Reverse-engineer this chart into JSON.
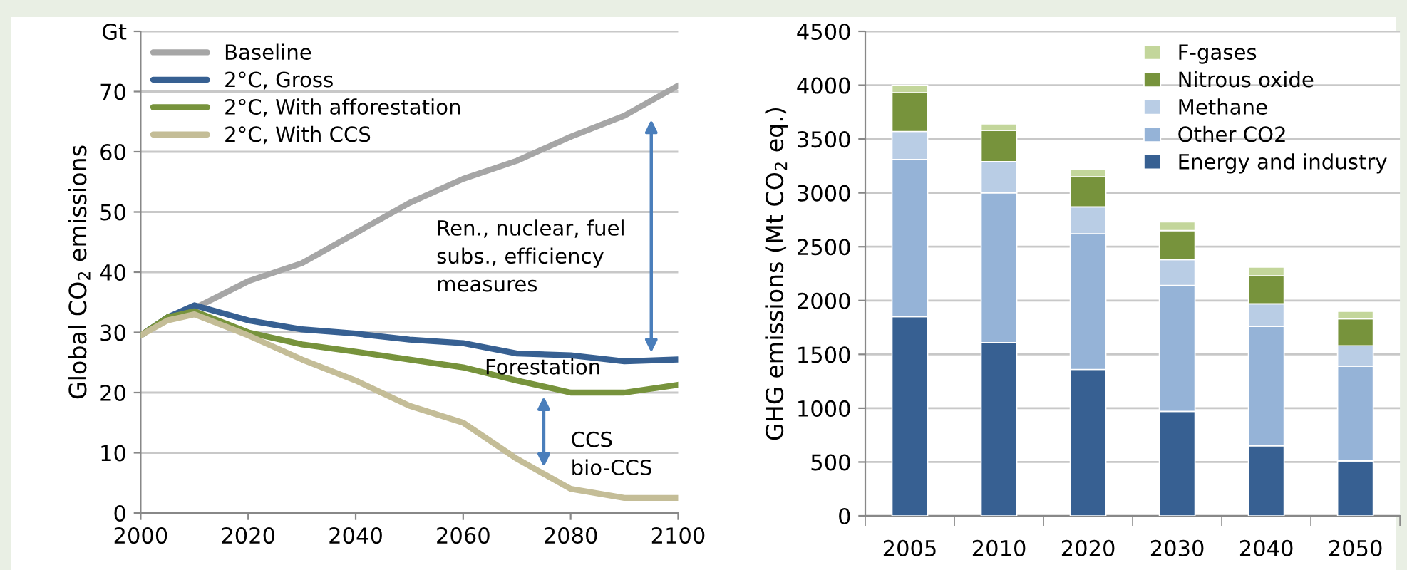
{
  "chart_data": [
    {
      "type": "line",
      "ylabel": "Global CO$_{2}$ emissions",
      "x": [
        2000,
        2005,
        2010,
        2020,
        2030,
        2040,
        2050,
        2060,
        2070,
        2080,
        2090,
        2100
      ],
      "xlim": [
        2000,
        2100
      ],
      "xticks": [
        2000,
        2020,
        2040,
        2060,
        2080,
        2100
      ],
      "ylim": [
        0,
        80
      ],
      "yticks": [
        0,
        10,
        20,
        30,
        40,
        50,
        60,
        70,
        {
          "value": 80,
          "label": "Gt"
        }
      ],
      "grid": "y",
      "legend": "top left",
      "marker": "none",
      "line_style": "solid",
      "series": [
        {
          "name": "Baseline",
          "color": "#a6a6a6",
          "values": [
            29.5,
            32.5,
            34,
            38.5,
            41.5,
            46.5,
            51.5,
            55.5,
            58.5,
            62.5,
            66,
            71
          ]
        },
        {
          "name": "2°C, Gross",
          "color": "#376092",
          "values": [
            29.5,
            32.5,
            34.5,
            32,
            30.5,
            29.8,
            28.8,
            28.2,
            26.5,
            26.2,
            25.2,
            25.5
          ]
        },
        {
          "name": "2°C, With afforestation",
          "color": "#77933c",
          "values": [
            29.5,
            32.5,
            33.5,
            30,
            28,
            26.8,
            25.5,
            24.2,
            22,
            20,
            20,
            21.3
          ]
        },
        {
          "name": "2°C, With CCS",
          "color": "#c4bd97",
          "values": [
            29.5,
            32,
            33,
            29.5,
            25.5,
            22,
            17.8,
            15,
            9,
            4,
            2.5,
            2.5
          ]
        }
      ],
      "annotations": [
        "Ren., nuclear, fuel\nsubs., efficiency\nmeasures",
        "Forestation",
        "CCS\nbio-CCS"
      ]
    },
    {
      "type": "bar",
      "stacked": true,
      "ylabel": "GHG emissions (Mt CO$_{2}$ eq.)",
      "categories": [
        "2005",
        "2010",
        "2020",
        "2030",
        "2040",
        "2050"
      ],
      "ylim": [
        0,
        4500
      ],
      "yticks": [
        0,
        500,
        1000,
        1500,
        2000,
        2500,
        3000,
        3500,
        4000,
        4500
      ],
      "grid": "y",
      "legend": "top right",
      "series": [
        {
          "name": "Energy and industry",
          "color": "#376092",
          "values": [
            1850,
            1610,
            1360,
            970,
            650,
            510
          ]
        },
        {
          "name": "Other CO2",
          "color": "#95b3d7",
          "values": [
            1460,
            1390,
            1260,
            1170,
            1110,
            880
          ]
        },
        {
          "name": "Methane",
          "color": "#b9cde5",
          "values": [
            260,
            290,
            250,
            240,
            210,
            190
          ]
        },
        {
          "name": "Nitrous oxide",
          "color": "#77933c",
          "values": [
            360,
            290,
            280,
            270,
            260,
            250
          ]
        },
        {
          "name": "F-gases",
          "color": "#c3d69b",
          "values": [
            70,
            60,
            70,
            80,
            80,
            70
          ]
        }
      ]
    }
  ]
}
